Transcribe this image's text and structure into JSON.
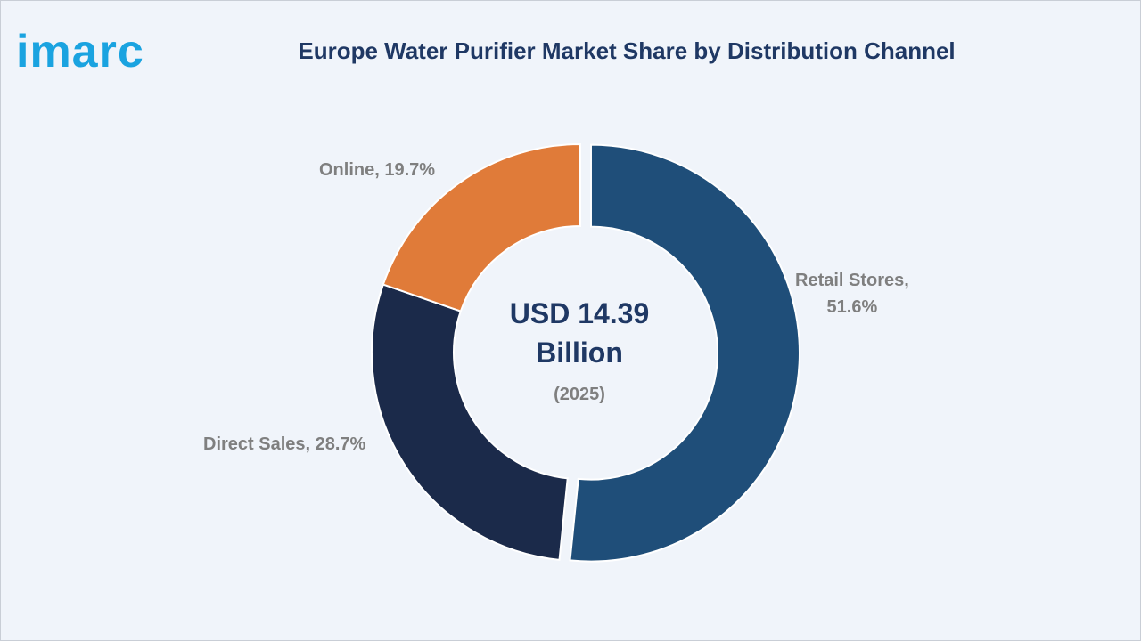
{
  "brand": {
    "logo_text": "imarc",
    "color": "#1aa3e0"
  },
  "chart_data": {
    "type": "pie",
    "variant": "donut",
    "title": "Europe Water Purifier Market Share by Distribution Channel",
    "center_value": "USD 14.39 Billion",
    "center_year": "(2025)",
    "unit": "%",
    "slices": [
      {
        "name": "Retail Stores",
        "value": 51.6,
        "color": "#1f4e79",
        "label_line1": "Retail Stores,",
        "label_line2": "51.6%"
      },
      {
        "name": "Direct Sales",
        "value": 28.7,
        "color": "#1b2a4a",
        "label_line1": "Direct Sales, 28.7%"
      },
      {
        "name": "Online",
        "value": 19.7,
        "color": "#e07b39",
        "label_line1": "Online, 19.7%"
      }
    ],
    "exploded_slice": "Retail Stores"
  }
}
